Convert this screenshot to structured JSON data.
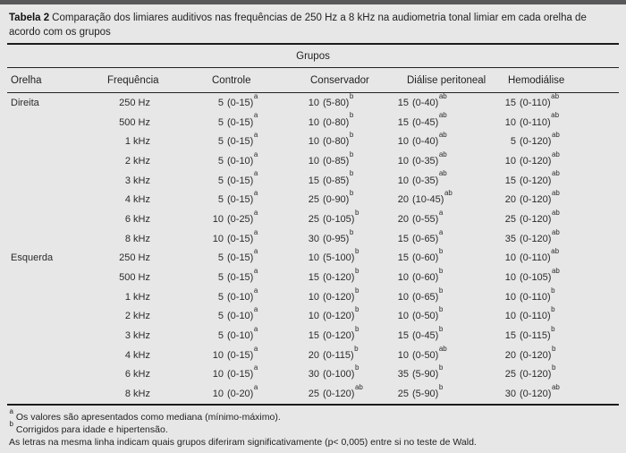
{
  "title": {
    "label": "Tabela 2",
    "text": "Comparação dos limiares auditivos nas frequências de 250 Hz a 8 kHz na audiometria tonal limiar em cada orelha de acordo com os grupos"
  },
  "table": {
    "group_header": "Grupos",
    "columns": [
      "Orelha",
      "Frequência",
      "Controle",
      "Conservador",
      "Diálise peritoneal",
      "Hemodiálise"
    ],
    "rows": [
      {
        "ear": "Direita",
        "freq": "250 Hz",
        "values": [
          {
            "m": "5",
            "r": "(0-15)",
            "s": "a"
          },
          {
            "m": "10",
            "r": "(5-80)",
            "s": "b"
          },
          {
            "m": "15",
            "r": "(0-40)",
            "s": "ab"
          },
          {
            "m": "15",
            "r": "(0-110)",
            "s": "ab"
          }
        ]
      },
      {
        "ear": "",
        "freq": "500 Hz",
        "values": [
          {
            "m": "5",
            "r": "(0-15)",
            "s": "a"
          },
          {
            "m": "10",
            "r": "(0-80)",
            "s": "b"
          },
          {
            "m": "15",
            "r": "(0-45)",
            "s": "ab"
          },
          {
            "m": "10",
            "r": "(0-110)",
            "s": "ab"
          }
        ]
      },
      {
        "ear": "",
        "freq": "1 kHz",
        "values": [
          {
            "m": "5",
            "r": "(0-15)",
            "s": "a"
          },
          {
            "m": "10",
            "r": "(0-80)",
            "s": "b"
          },
          {
            "m": "10",
            "r": "(0-40)",
            "s": "ab"
          },
          {
            "m": "5",
            "r": "(0-120)",
            "s": "ab"
          }
        ]
      },
      {
        "ear": "",
        "freq": "2 kHz",
        "values": [
          {
            "m": "5",
            "r": "(0-10)",
            "s": "a"
          },
          {
            "m": "10",
            "r": "(0-85)",
            "s": "b"
          },
          {
            "m": "10",
            "r": "(0-35)",
            "s": "ab"
          },
          {
            "m": "10",
            "r": "(0-120)",
            "s": "ab"
          }
        ]
      },
      {
        "ear": "",
        "freq": "3 kHz",
        "values": [
          {
            "m": "5",
            "r": "(0-15)",
            "s": "a"
          },
          {
            "m": "15",
            "r": "(0-85)",
            "s": "b"
          },
          {
            "m": "10",
            "r": "(0-35)",
            "s": "ab"
          },
          {
            "m": "15",
            "r": "(0-120)",
            "s": "ab"
          }
        ]
      },
      {
        "ear": "",
        "freq": "4 kHz",
        "values": [
          {
            "m": "5",
            "r": "(0-15)",
            "s": "a"
          },
          {
            "m": "25",
            "r": "(0-90)",
            "s": "b"
          },
          {
            "m": "20",
            "r": "(10-45)",
            "s": "ab"
          },
          {
            "m": "20",
            "r": "(0-120)",
            "s": "ab"
          }
        ]
      },
      {
        "ear": "",
        "freq": "6 kHz",
        "values": [
          {
            "m": "10",
            "r": "(0-25)",
            "s": "a"
          },
          {
            "m": "25",
            "r": "(0-105)",
            "s": "b"
          },
          {
            "m": "20",
            "r": "(0-55)",
            "s": "a"
          },
          {
            "m": "25",
            "r": "(0-120)",
            "s": "ab"
          }
        ]
      },
      {
        "ear": "",
        "freq": "8 kHz",
        "values": [
          {
            "m": "10",
            "r": "(0-15)",
            "s": "a"
          },
          {
            "m": "30",
            "r": "(0-95)",
            "s": "b"
          },
          {
            "m": "15",
            "r": "(0-65)",
            "s": "a"
          },
          {
            "m": "35",
            "r": "(0-120)",
            "s": "ab"
          }
        ]
      },
      {
        "ear": "Esquerda",
        "freq": "250 Hz",
        "values": [
          {
            "m": "5",
            "r": "(0-15)",
            "s": "a"
          },
          {
            "m": "10",
            "r": "(5-100)",
            "s": "b"
          },
          {
            "m": "15",
            "r": "(0-60)",
            "s": "b"
          },
          {
            "m": "10",
            "r": "(0-110)",
            "s": "ab"
          }
        ]
      },
      {
        "ear": "",
        "freq": "500 Hz",
        "values": [
          {
            "m": "5",
            "r": "(0-15)",
            "s": "a"
          },
          {
            "m": "15",
            "r": "(0-120)",
            "s": "b"
          },
          {
            "m": "10",
            "r": "(0-60)",
            "s": "b"
          },
          {
            "m": "10",
            "r": "(0-105)",
            "s": "ab"
          }
        ]
      },
      {
        "ear": "",
        "freq": "1 kHz",
        "values": [
          {
            "m": "5",
            "r": "(0-10)",
            "s": "a"
          },
          {
            "m": "10",
            "r": "(0-120)",
            "s": "b"
          },
          {
            "m": "10",
            "r": "(0-65)",
            "s": "b"
          },
          {
            "m": "10",
            "r": "(0-110)",
            "s": "b"
          }
        ]
      },
      {
        "ear": "",
        "freq": "2 kHz",
        "values": [
          {
            "m": "5",
            "r": "(0-10)",
            "s": "a"
          },
          {
            "m": "10",
            "r": "(0-120)",
            "s": "b"
          },
          {
            "m": "10",
            "r": "(0-50)",
            "s": "b"
          },
          {
            "m": "10",
            "r": "(0-110)",
            "s": "b"
          }
        ]
      },
      {
        "ear": "",
        "freq": "3 kHz",
        "values": [
          {
            "m": "5",
            "r": "(0-10)",
            "s": "a"
          },
          {
            "m": "15",
            "r": "(0-120)",
            "s": "b"
          },
          {
            "m": "15",
            "r": "(0-45)",
            "s": "b"
          },
          {
            "m": "15",
            "r": "(0-115)",
            "s": "b"
          }
        ]
      },
      {
        "ear": "",
        "freq": "4 kHz",
        "values": [
          {
            "m": "10",
            "r": "(0-15)",
            "s": "a"
          },
          {
            "m": "20",
            "r": "(0-115)",
            "s": "b"
          },
          {
            "m": "10",
            "r": "(0-50)",
            "s": "ab"
          },
          {
            "m": "20",
            "r": "(0-120)",
            "s": "b"
          }
        ]
      },
      {
        "ear": "",
        "freq": "6 kHz",
        "values": [
          {
            "m": "10",
            "r": "(0-15)",
            "s": "a"
          },
          {
            "m": "30",
            "r": "(0-100)",
            "s": "b"
          },
          {
            "m": "35",
            "r": "(5-90)",
            "s": "b"
          },
          {
            "m": "25",
            "r": "(0-120)",
            "s": "b"
          }
        ]
      },
      {
        "ear": "",
        "freq": "8 kHz",
        "values": [
          {
            "m": "10",
            "r": "(0-20)",
            "s": "a"
          },
          {
            "m": "25",
            "r": "(0-120)",
            "s": "ab"
          },
          {
            "m": "25",
            "r": "(5-90)",
            "s": "b"
          },
          {
            "m": "30",
            "r": "(0-120)",
            "s": "ab"
          }
        ]
      }
    ]
  },
  "footnotes": [
    {
      "sup": "a",
      "text": "Os valores são apresentados como mediana (mínimo-máximo)."
    },
    {
      "sup": "b",
      "text": "Corrigidos para idade e hipertensão."
    },
    {
      "sup": "",
      "text": "As letras na mesma linha indicam quais grupos diferiram significativamente (p< 0,005) entre si no teste de Wald."
    }
  ],
  "colors": {
    "background": "#e7e7e7",
    "topbar": "#58585a",
    "text": "#2b2b2b",
    "rule": "#1c1c1c"
  }
}
